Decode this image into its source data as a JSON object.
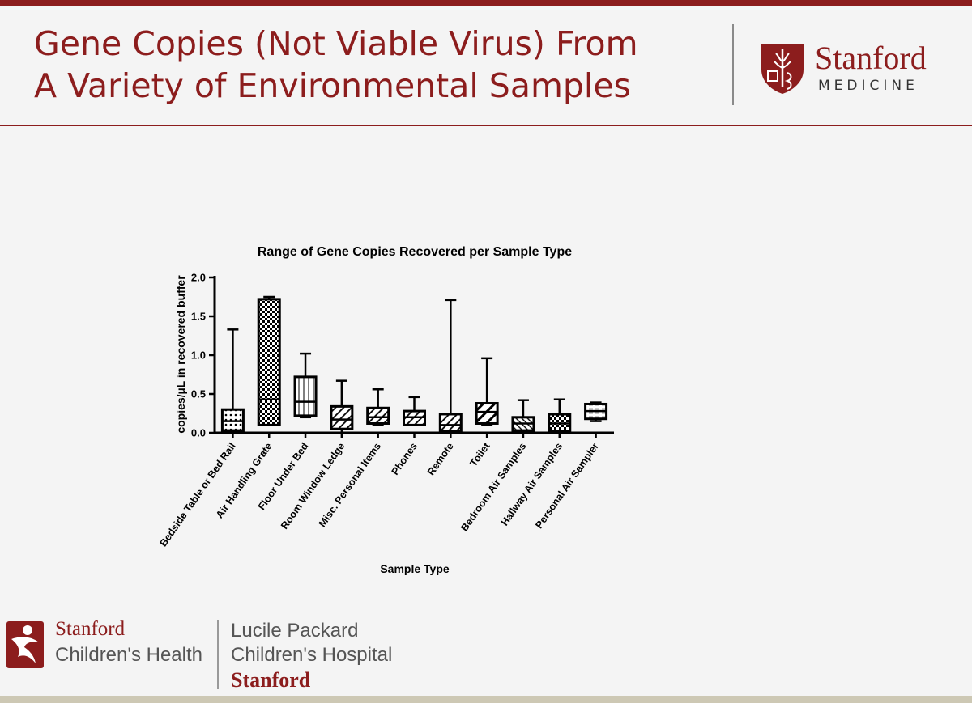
{
  "header": {
    "title_line1": "Gene Copies (Not Viable Virus) From",
    "title_line2": "A Variety of Environmental Samples",
    "logo_word": "Stanford",
    "logo_sub": "MEDICINE"
  },
  "footer": {
    "sch_line1": "Stanford",
    "sch_line2": "Children's Health",
    "lpch_line1": "Lucile Packard",
    "lpch_line2": "Children's Hospital",
    "lpch_line3": "Stanford"
  },
  "colors": {
    "brand": "#8c1d1d"
  },
  "chart_data": {
    "type": "box",
    "title": "Range of Gene Copies Recovered per Sample Type",
    "xlabel": "Sample Type",
    "ylabel": "copies/µL in recovered buffer",
    "ylim": [
      0,
      2.0
    ],
    "yticks": [
      "0.0",
      "0.5",
      "1.0",
      "1.5",
      "2.0"
    ],
    "grid": false,
    "categories": [
      "Bedside Table or Bed Rail",
      "Air Handling Grate",
      "Floor Under Bed",
      "Room Window Ledge",
      "Misc. Personal Items",
      "Phones",
      "Remote",
      "Toilet",
      "Bedroom Air Samples",
      "Hallway Air Samples",
      "Personal Air Sampler"
    ],
    "boxes": [
      {
        "min": 0.0,
        "q1": 0.03,
        "median": 0.15,
        "q3": 0.3,
        "max": 1.33,
        "pattern": "dots"
      },
      {
        "min": 0.1,
        "q1": 0.1,
        "median": 0.43,
        "q3": 1.72,
        "max": 1.75,
        "pattern": "checker"
      },
      {
        "min": 0.2,
        "q1": 0.22,
        "median": 0.4,
        "q3": 0.72,
        "max": 1.02,
        "pattern": "vlines"
      },
      {
        "min": 0.0,
        "q1": 0.05,
        "median": 0.17,
        "q3": 0.34,
        "max": 0.67,
        "pattern": "diag"
      },
      {
        "min": 0.1,
        "q1": 0.12,
        "median": 0.2,
        "q3": 0.32,
        "max": 0.56,
        "pattern": "diag"
      },
      {
        "min": 0.1,
        "q1": 0.1,
        "median": 0.2,
        "q3": 0.28,
        "max": 0.46,
        "pattern": "diag"
      },
      {
        "min": 0.0,
        "q1": 0.02,
        "median": 0.1,
        "q3": 0.24,
        "max": 1.71,
        "pattern": "diag"
      },
      {
        "min": 0.1,
        "q1": 0.12,
        "median": 0.27,
        "q3": 0.38,
        "max": 0.96,
        "pattern": "bigdiag"
      },
      {
        "min": 0.0,
        "q1": 0.03,
        "median": 0.12,
        "q3": 0.2,
        "max": 0.42,
        "pattern": "hdiag"
      },
      {
        "min": 0.0,
        "q1": 0.02,
        "median": 0.12,
        "q3": 0.24,
        "max": 0.43,
        "pattern": "checker"
      },
      {
        "min": 0.15,
        "q1": 0.18,
        "median": 0.28,
        "q3": 0.37,
        "max": 0.39,
        "pattern": "hdash"
      }
    ]
  }
}
